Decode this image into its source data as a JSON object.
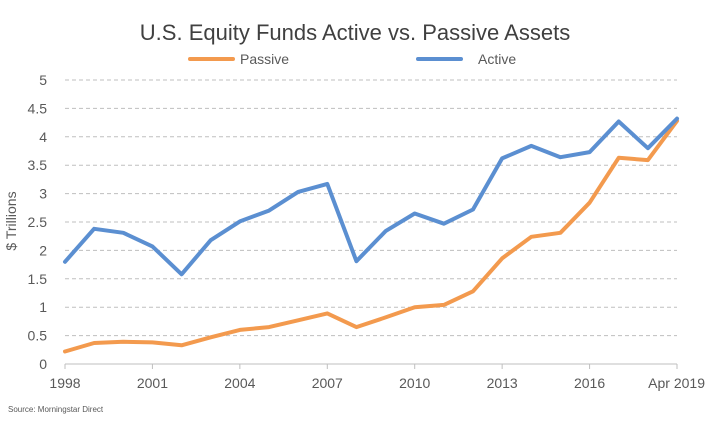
{
  "chart_data": {
    "type": "line",
    "title": "U.S. Equity Funds Active vs. Passive Assets",
    "ylabel": "$ Trillions",
    "xlabel": "",
    "x": [
      "1998",
      "1999",
      "2000",
      "2001",
      "2002",
      "2003",
      "2004",
      "2005",
      "2006",
      "2007",
      "2008",
      "2009",
      "2010",
      "2011",
      "2012",
      "2013",
      "2014",
      "2015",
      "2016",
      "2017",
      "2018",
      "Apr 2019"
    ],
    "x_tick_labels": [
      "1998",
      "2001",
      "2004",
      "2007",
      "2010",
      "2013",
      "2016",
      "Apr 2019"
    ],
    "y_ticks": [
      "0",
      "0.5",
      "1",
      "1.5",
      "2",
      "2.5",
      "3",
      "3.5",
      "4",
      "4.5",
      "5"
    ],
    "ylim": [
      0,
      5
    ],
    "grid": "horizontal dashed",
    "legend_position": "top",
    "series": [
      {
        "name": "Passive",
        "color": "#F39A4E",
        "values": [
          0.22,
          0.37,
          0.39,
          0.38,
          0.33,
          0.47,
          0.6,
          0.65,
          0.77,
          0.89,
          0.65,
          0.82,
          1.0,
          1.04,
          1.28,
          1.86,
          2.24,
          2.31,
          2.84,
          3.63,
          3.59,
          4.28
        ]
      },
      {
        "name": "Active",
        "color": "#5B8FD1",
        "values": [
          1.8,
          2.38,
          2.31,
          2.07,
          1.58,
          2.18,
          2.51,
          2.7,
          3.03,
          3.17,
          1.81,
          2.34,
          2.65,
          2.47,
          2.72,
          3.62,
          3.84,
          3.64,
          3.73,
          4.27,
          3.8,
          4.32
        ]
      }
    ],
    "source": "Source: Morningstar Direct"
  }
}
